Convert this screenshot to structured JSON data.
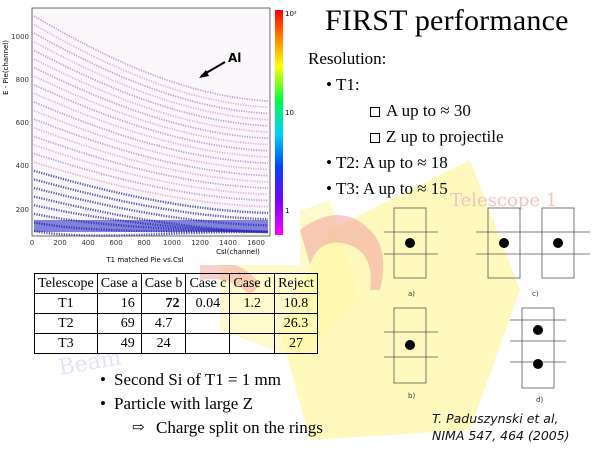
{
  "slide": {
    "title": "FIRST performance",
    "resolution_heading": "Resolution:",
    "resolution_items": [
      {
        "label": "T1:",
        "subitems": [
          "A up to ≈ 30",
          "Z up to projectile"
        ]
      },
      {
        "label": "T2: A up to ≈ 18"
      },
      {
        "label": "T3: A up to ≈ 15"
      }
    ],
    "watermark_text": "Telescope 1",
    "plot": {
      "y_axis_label": "E - Pie(channel)",
      "x_axis_label": "CsI(channel)",
      "plot_caption": "T1 matched Pie vs.CsI",
      "annotation": "Al",
      "x_ticks": [
        "0",
        "200",
        "400",
        "600",
        "800",
        "1000",
        "1200",
        "1400",
        "1600"
      ],
      "y_ticks": [
        "200",
        "400",
        "600",
        "800",
        "1000"
      ],
      "colorbar_ticks": [
        "10²",
        "10",
        "1"
      ]
    },
    "table": {
      "headers": [
        "Telescope",
        "Case a",
        "Case b",
        "Case c",
        "Case d",
        "Reject"
      ],
      "rows": [
        [
          "T1",
          "16",
          "72",
          "0.04",
          "1.2",
          "10.8"
        ],
        [
          "T2",
          "69",
          "4.7",
          "",
          "",
          "26.3"
        ],
        [
          "T3",
          "49",
          "24",
          "",
          "",
          "27"
        ]
      ]
    },
    "bullets": [
      "Second Si of T1  = 1 mm",
      "Particle with large Z"
    ],
    "sub_bullet": "Charge split on the rings",
    "citation_line1": "T. Paduszynski et al,",
    "citation_line2": "NIMA 547, 464 (2005)",
    "diagram_labels": [
      "a)",
      "c)",
      "b)",
      "d)"
    ],
    "colors": {
      "band_blue": "#3a3aa8",
      "band_pink": "#d070c0",
      "wash_yellow": "#fff5a0",
      "wash_red": "#f2b8b8"
    }
  }
}
